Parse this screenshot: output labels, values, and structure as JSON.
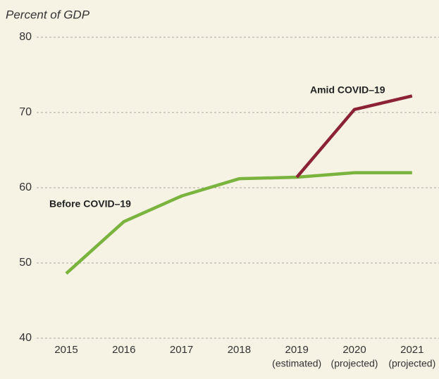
{
  "chart_data": {
    "type": "line",
    "y_axis_label": "Percent of GDP",
    "categories": [
      "2015",
      "2016",
      "2017",
      "2018",
      "2019",
      "2020",
      "2021"
    ],
    "category_sublabels": [
      null,
      null,
      null,
      null,
      "(estimated)",
      "(projected)",
      "(projected)"
    ],
    "series": [
      {
        "name": "Before COVID–19",
        "color": "#7ab33e",
        "values": [
          48.6,
          55.5,
          58.9,
          61.2,
          61.4,
          62.0,
          62.0
        ]
      },
      {
        "name": "Amid COVID–19",
        "color": "#8b2335",
        "values": [
          null,
          null,
          null,
          null,
          61.4,
          70.4,
          72.2
        ]
      }
    ],
    "ylim": [
      40,
      80
    ],
    "yticks": [
      40,
      50,
      60,
      70,
      80
    ],
    "grid": true
  }
}
